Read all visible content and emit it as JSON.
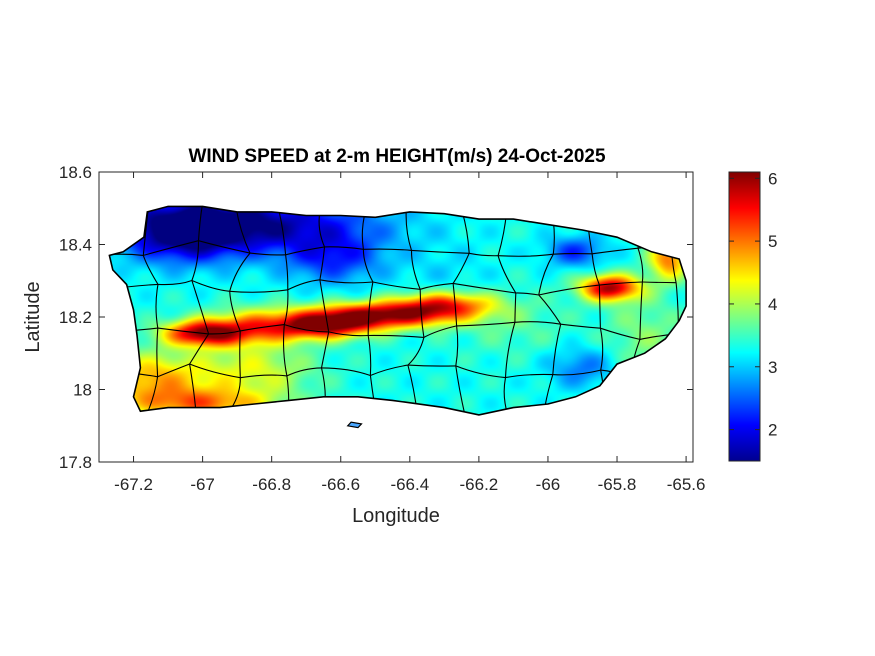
{
  "chart_data": {
    "type": "heatmap",
    "title": "WIND SPEED at 2-m HEIGHT(m/s) 24-Oct-2025",
    "xlabel": "Longitude",
    "ylabel": "Latitude",
    "xlim": [
      -67.3,
      -65.58
    ],
    "ylim": [
      17.8,
      18.6
    ],
    "xticks": [
      -67.2,
      -67,
      -66.8,
      -66.6,
      -66.4,
      -66.2,
      -66,
      -65.8,
      -65.6
    ],
    "xtick_labels": [
      "-67.2",
      "-67",
      "-66.8",
      "-66.6",
      "-66.4",
      "-66.2",
      "-66",
      "-65.8",
      "-65.6"
    ],
    "yticks": [
      17.8,
      18,
      18.2,
      18.4,
      18.6
    ],
    "ytick_labels": [
      "17.8",
      "18",
      "18.2",
      "18.4",
      "18.6"
    ],
    "colorbar": {
      "min": 1.5,
      "max": 6.1,
      "ticks": [
        2,
        3,
        4,
        5,
        6
      ],
      "tick_labels": [
        "2",
        "3",
        "4",
        "5",
        "6"
      ],
      "colormap": "jet"
    },
    "field": {
      "background_value": 3.3,
      "features": [
        {
          "lon": -66.88,
          "lat": 18.455,
          "value": 1.6,
          "sx": 0.26,
          "sy": 0.055
        },
        {
          "lon": -67.05,
          "lat": 18.43,
          "value": 2.0,
          "sx": 0.12,
          "sy": 0.06
        },
        {
          "lon": -66.62,
          "lat": 18.36,
          "value": 2.3,
          "sx": 0.1,
          "sy": 0.05
        },
        {
          "lon": -65.92,
          "lat": 18.38,
          "value": 2.3,
          "sx": 0.06,
          "sy": 0.03
        },
        {
          "lon": -66.48,
          "lat": 18.205,
          "value": 5.9,
          "sx": 0.15,
          "sy": 0.025
        },
        {
          "lon": -66.65,
          "lat": 18.175,
          "value": 5.7,
          "sx": 0.1,
          "sy": 0.025
        },
        {
          "lon": -66.3,
          "lat": 18.235,
          "value": 5.1,
          "sx": 0.1,
          "sy": 0.025
        },
        {
          "lon": -67.0,
          "lat": 18.155,
          "value": 5.8,
          "sx": 0.08,
          "sy": 0.025
        },
        {
          "lon": -66.85,
          "lat": 18.17,
          "value": 4.8,
          "sx": 0.1,
          "sy": 0.035
        },
        {
          "lon": -65.82,
          "lat": 18.28,
          "value": 5.9,
          "sx": 0.06,
          "sy": 0.025
        },
        {
          "lon": -65.65,
          "lat": 18.36,
          "value": 5.0,
          "sx": 0.04,
          "sy": 0.04
        },
        {
          "lon": -67.15,
          "lat": 18.03,
          "value": 4.7,
          "sx": 0.12,
          "sy": 0.05
        },
        {
          "lon": -67.0,
          "lat": 17.96,
          "value": 4.8,
          "sx": 0.15,
          "sy": 0.03
        },
        {
          "lon": -66.85,
          "lat": 18.05,
          "value": 4.2,
          "sx": 0.12,
          "sy": 0.05
        },
        {
          "lon": -65.9,
          "lat": 18.06,
          "value": 2.6,
          "sx": 0.07,
          "sy": 0.04
        },
        {
          "lon": -66.0,
          "lat": 18.1,
          "value": 3.3,
          "sx": 0.08,
          "sy": 0.04
        },
        {
          "lon": -66.3,
          "lat": 18.32,
          "value": 3.1,
          "sx": 0.1,
          "sy": 0.06
        },
        {
          "lon": -66.1,
          "lat": 18.18,
          "value": 3.6,
          "sx": 0.12,
          "sy": 0.06
        },
        {
          "lon": -65.72,
          "lat": 18.15,
          "value": 3.8,
          "sx": 0.08,
          "sy": 0.08
        }
      ]
    }
  },
  "map": {
    "island_outline": [
      [
        -67.27,
        18.37
      ],
      [
        -67.23,
        18.38
      ],
      [
        -67.17,
        18.42
      ],
      [
        -67.16,
        18.49
      ],
      [
        -67.1,
        18.505
      ],
      [
        -67.0,
        18.505
      ],
      [
        -66.9,
        18.49
      ],
      [
        -66.8,
        18.49
      ],
      [
        -66.7,
        18.48
      ],
      [
        -66.6,
        18.48
      ],
      [
        -66.5,
        18.475
      ],
      [
        -66.4,
        18.49
      ],
      [
        -66.3,
        18.485
      ],
      [
        -66.2,
        18.47
      ],
      [
        -66.1,
        18.47
      ],
      [
        -66.0,
        18.455
      ],
      [
        -65.9,
        18.44
      ],
      [
        -65.8,
        18.42
      ],
      [
        -65.7,
        18.38
      ],
      [
        -65.62,
        18.36
      ],
      [
        -65.6,
        18.3
      ],
      [
        -65.6,
        18.23
      ],
      [
        -65.62,
        18.19
      ],
      [
        -65.66,
        18.14
      ],
      [
        -65.72,
        18.1
      ],
      [
        -65.8,
        18.07
      ],
      [
        -65.85,
        18.01
      ],
      [
        -65.92,
        17.98
      ],
      [
        -66.0,
        17.96
      ],
      [
        -66.1,
        17.95
      ],
      [
        -66.2,
        17.93
      ],
      [
        -66.3,
        17.95
      ],
      [
        -66.45,
        17.97
      ],
      [
        -66.55,
        17.98
      ],
      [
        -66.65,
        17.98
      ],
      [
        -66.75,
        17.97
      ],
      [
        -66.85,
        17.96
      ],
      [
        -66.95,
        17.95
      ],
      [
        -67.1,
        17.95
      ],
      [
        -67.18,
        17.94
      ],
      [
        -67.2,
        17.98
      ],
      [
        -67.18,
        18.06
      ],
      [
        -67.19,
        18.15
      ],
      [
        -67.2,
        18.22
      ],
      [
        -67.22,
        18.29
      ],
      [
        -67.26,
        18.33
      ]
    ],
    "satellite_islet": [
      [
        -66.58,
        17.9
      ],
      [
        -66.55,
        17.895
      ],
      [
        -66.54,
        17.905
      ],
      [
        -66.57,
        17.91
      ]
    ]
  }
}
